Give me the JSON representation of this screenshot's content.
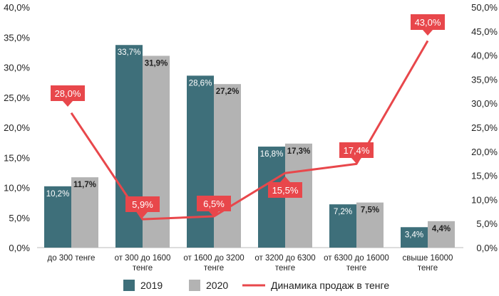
{
  "chart_data": {
    "type": "bar",
    "categories": [
      [
        "до 300 тенге"
      ],
      [
        "от 300 до 1600",
        "тенге"
      ],
      [
        "от 1600 до 3200",
        "тенге"
      ],
      [
        "от 3200 до 6300",
        "тенге"
      ],
      [
        "от 6300 до 16000",
        "тенге"
      ],
      [
        "свыше 16000",
        "тенге"
      ]
    ],
    "series": [
      {
        "name": "2019",
        "type": "bar",
        "axis": "left",
        "color": "#3e6f7a",
        "values": [
          10.2,
          33.7,
          28.6,
          16.8,
          7.2,
          3.4
        ],
        "labels": [
          "10,2%",
          "33,7%",
          "28,6%",
          "16,8%",
          "7,2%",
          "3,4%"
        ]
      },
      {
        "name": "2020",
        "type": "bar",
        "axis": "left",
        "color": "#b3b3b3",
        "values": [
          11.7,
          31.9,
          27.2,
          17.3,
          7.5,
          4.4
        ],
        "labels": [
          "11,7%",
          "31,9%",
          "27,2%",
          "17,3%",
          "7,5%",
          "4,4%"
        ]
      },
      {
        "name": "Динамика продаж в тенге",
        "type": "line",
        "axis": "right",
        "color": "#e8474b",
        "values": [
          28.0,
          5.9,
          6.5,
          15.5,
          17.4,
          43.0
        ],
        "labels": [
          "28,0%",
          "5,9%",
          "6,5%",
          "15,5%",
          "17,4%",
          "43,0%"
        ]
      }
    ],
    "y_left": {
      "min": 0,
      "max": 40,
      "ticks": [
        "0,0%",
        "5,0%",
        "10,0%",
        "15,0%",
        "20,0%",
        "25,0%",
        "30,0%",
        "35,0%",
        "40,0%"
      ]
    },
    "y_right": {
      "min": 0,
      "max": 50,
      "ticks": [
        "0,0%",
        "5,0%",
        "10,0%",
        "15,0%",
        "20,0%",
        "25,0%",
        "30,0%",
        "35,0%",
        "40,0%",
        "45,0%",
        "50,0%"
      ]
    },
    "grid": false,
    "legend_position": "bottom"
  }
}
